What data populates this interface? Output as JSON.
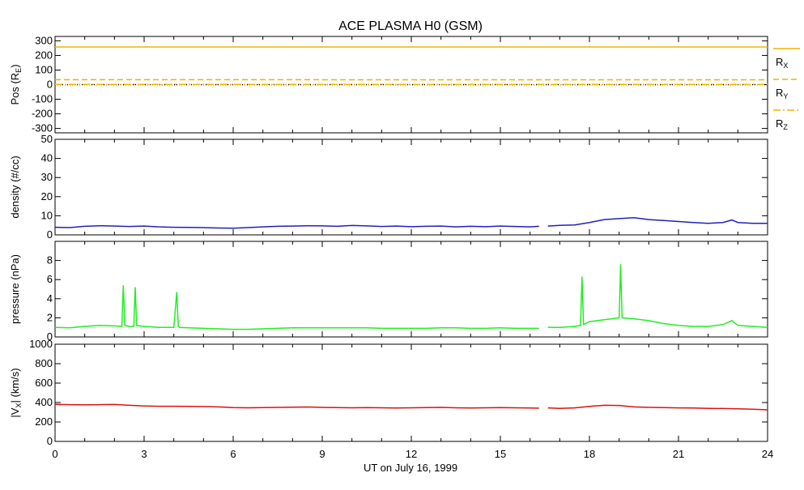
{
  "chart_data": {
    "type": "line",
    "title": "ACE PLASMA H0 (GSM)",
    "xlabel": "UT on July 16, 1999",
    "xlim": [
      0,
      24
    ],
    "xticks": [
      "0",
      "3",
      "6",
      "9",
      "12",
      "15",
      "18",
      "21",
      "24"
    ],
    "panels": [
      {
        "id": "pos",
        "ylabel_main": "Pos (R",
        "ylabel_sub": "E",
        "ylabel_end": ")",
        "ylim": [
          -330,
          330
        ],
        "yticks": [
          -300,
          -200,
          -100,
          0,
          100,
          200,
          300
        ],
        "series": [
          {
            "name": "R",
            "sub": "X",
            "color": "#f0b400",
            "style": "solid",
            "x": [
              0,
              24
            ],
            "y": [
              258,
              258
            ]
          },
          {
            "name": "R",
            "sub": "Y",
            "color": "#f0b400",
            "style": "dashed",
            "x": [
              0,
              24
            ],
            "y": [
              34,
              33
            ]
          },
          {
            "name": "R",
            "sub": "Z",
            "color": "#f0b400",
            "style": "dashdot",
            "x": [
              0,
              24
            ],
            "y": [
              1,
              1
            ]
          }
        ],
        "extra_series": [
          {
            "color": "#000000",
            "style": "dotted",
            "x": [
              0,
              24
            ],
            "y": [
              0,
              0
            ]
          }
        ]
      },
      {
        "id": "density",
        "ylabel": "density (#/cc)",
        "ylim": [
          0,
          50
        ],
        "yticks": [
          0,
          10,
          20,
          30,
          40,
          50
        ],
        "series": [
          {
            "color": "#2020c0",
            "x": [
              0,
              0.5,
              1,
              1.5,
              2,
              2.5,
              3,
              3.5,
              4,
              4.5,
              5,
              5.5,
              6,
              6.5,
              7,
              7.5,
              8,
              8.5,
              9,
              9.5,
              10,
              10.5,
              11,
              11.5,
              12,
              12.5,
              13,
              13.5,
              14,
              14.5,
              15,
              15.5,
              16,
              16.3,
              null,
              16.6,
              17,
              17.5,
              18,
              18.5,
              19,
              19.5,
              20,
              20.5,
              21,
              21.5,
              22,
              22.5,
              22.8,
              23,
              23.5,
              24
            ],
            "y": [
              4.0,
              3.8,
              4.5,
              4.8,
              4.6,
              4.4,
              4.6,
              4.2,
              4.0,
              3.9,
              3.8,
              3.6,
              3.5,
              3.8,
              4.2,
              4.5,
              4.6,
              4.8,
              4.7,
              4.5,
              4.9,
              4.7,
              4.4,
              4.6,
              4.3,
              4.5,
              4.6,
              4.2,
              4.5,
              4.3,
              4.6,
              4.4,
              4.2,
              4.5,
              null,
              4.6,
              5.0,
              5.2,
              6.5,
              8.0,
              8.5,
              9.0,
              8.0,
              7.5,
              7.0,
              6.5,
              6.0,
              6.5,
              7.8,
              6.5,
              6.0,
              6.0
            ]
          }
        ]
      },
      {
        "id": "pressure",
        "ylabel": "pressure (nPa)",
        "ylim": [
          0,
          10
        ],
        "yticks": [
          0,
          2,
          4,
          6,
          8
        ],
        "series": [
          {
            "color": "#22ee22",
            "x": [
              0,
              0.5,
              1,
              1.5,
              2,
              2.25,
              2.3,
              2.35,
              2.5,
              2.65,
              2.7,
              2.75,
              3,
              3.5,
              4,
              4.1,
              4.15,
              4.2,
              4.5,
              5,
              5.5,
              6,
              6.5,
              7,
              7.5,
              8,
              8.5,
              9,
              9.5,
              10,
              10.5,
              11,
              11.5,
              12,
              12.5,
              13,
              13.5,
              14,
              14.5,
              15,
              15.5,
              16,
              16.3,
              null,
              16.6,
              17,
              17.5,
              17.7,
              17.75,
              17.8,
              18,
              18.5,
              19,
              19.05,
              19.1,
              19.5,
              20,
              20.5,
              21,
              21.5,
              22,
              22.5,
              22.8,
              23,
              23.5,
              24
            ],
            "y": [
              1.0,
              0.95,
              1.1,
              1.2,
              1.15,
              1.1,
              5.4,
              1.2,
              1.1,
              1.1,
              5.2,
              1.2,
              1.1,
              1.0,
              1.0,
              4.7,
              1.1,
              1.0,
              0.95,
              0.9,
              0.85,
              0.8,
              0.8,
              0.85,
              0.9,
              0.95,
              0.95,
              0.95,
              0.95,
              0.95,
              0.95,
              0.9,
              0.9,
              0.9,
              0.9,
              0.95,
              0.95,
              0.9,
              0.9,
              0.95,
              0.9,
              0.9,
              0.9,
              null,
              1.0,
              1.0,
              1.1,
              1.2,
              6.3,
              1.3,
              1.6,
              1.8,
              2.0,
              7.6,
              2.0,
              1.9,
              1.7,
              1.4,
              1.2,
              1.1,
              1.1,
              1.3,
              1.7,
              1.2,
              1.1,
              1.0
            ]
          }
        ]
      },
      {
        "id": "vx",
        "ylabel_main": "|V",
        "ylabel_sub": "X",
        "ylabel_end": "| (km/s)",
        "ylim": [
          0,
          1000
        ],
        "yticks": [
          0,
          200,
          400,
          600,
          800,
          1000
        ],
        "series": [
          {
            "color": "#dd1111",
            "x": [
              0,
              0.5,
              1,
              1.5,
              2,
              2.5,
              3,
              3.5,
              4,
              4.5,
              5,
              5.5,
              6,
              6.5,
              7,
              7.5,
              8,
              8.5,
              9,
              9.5,
              10,
              10.5,
              11,
              11.5,
              12,
              12.5,
              13,
              13.5,
              14,
              14.5,
              15,
              15.5,
              16,
              16.3,
              null,
              16.6,
              17,
              17.5,
              18,
              18.5,
              19,
              19.5,
              20,
              20.5,
              21,
              21.5,
              22,
              22.5,
              23,
              23.5,
              24
            ],
            "y": [
              382,
              378,
              376,
              378,
              380,
              372,
              365,
              362,
              362,
              360,
              358,
              355,
              348,
              346,
              348,
              350,
              352,
              354,
              350,
              348,
              346,
              348,
              346,
              344,
              346,
              348,
              350,
              346,
              344,
              346,
              348,
              346,
              344,
              342,
              null,
              345,
              340,
              345,
              360,
              372,
              370,
              355,
              350,
              348,
              345,
              343,
              340,
              338,
              335,
              332,
              325
            ]
          }
        ]
      }
    ]
  }
}
